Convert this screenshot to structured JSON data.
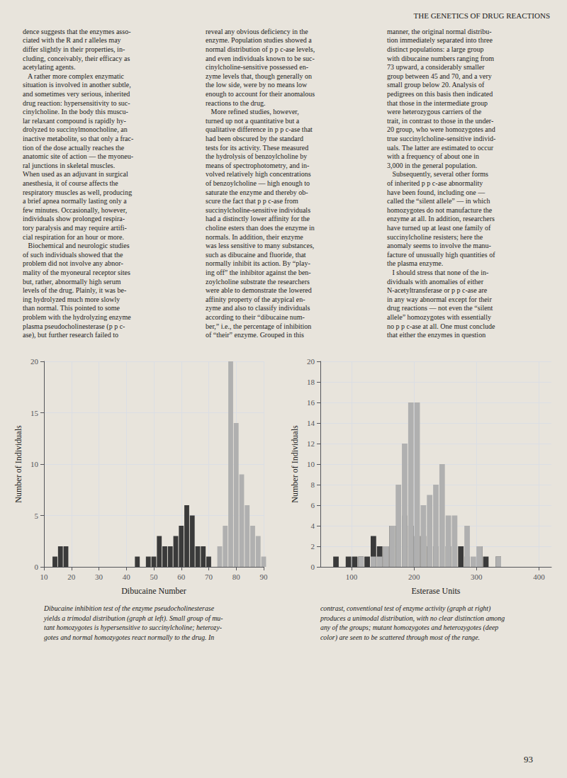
{
  "title": "THE GENETICS OF DRUG REACTIONS",
  "page_number": "93",
  "annotations": [
    "dence suggests that the enzymes asso-\nciated with the R and r alleles may\ndiffer slightly in their properties, in-\ncluding, conceivably, their efficacy as\nacetylating agents.\n   A rather more complex enzymatic\nsituation is involved in another subtle,\nand sometimes very serious, inherited\ndrug reaction: hypersensitivity to suc-\ncinylcholine. In the body this muscu-\nlar relaxant compound is rapidly hy-\ndrolyzed to succinylmonocholine, an\ninactive metabolite, so that only a frac-\ntion of the dose actually reaches the\nanatomic site of action — the myoneu-\nral junctions in skeletal muscles.\nWhen used as an adjuvant in surgical\nanesthesia, it of course affects the\nrespiratory muscles as well, producing\na brief apnea normally lasting only a\nfew minutes. Occasionally, however,\nindividuals show prolonged respira-\ntory paralysis and may require artifi-\ncial respiration for an hour or more.\n   Biochemical and neurologic studies\nof such individuals showed that the\nproblem did not involve any abnor-\nmality of the myoneural receptor sites\nbut, rather, abnormally high serum\nlevels of the drug. Plainly, it was be-\ning hydrolyzed much more slowly\nthan normal. This pointed to some\nproblem with the hydrolyzing enzyme\nplasma pseudocholinesterase (p p c-\nase), but further research failed to",
    "reveal any obvious deficiency in the\nenzyme. Population studies showed a\nnormal distribution of p p c-ase levels,\nand even individuals known to be suc-\ncinylcholine-sensitive possessed en-\nzyme levels that, though generally on\nthe low side, were by no means low\nenough to account for their anomalous\nreactions to the drug.\n   More refined studies, however,\nturned up not a quantitative but a\nqualitative difference in p p c-ase that\nhad been obscured by the standard\ntests for its activity. These measured\nthe hydrolysis of benzoylcholine by\nmeans of spectrophotometry, and in-\nvolved relatively high concentrations\nof benzoylcholine — high enough to\nsaturate the enzyme and thereby ob-\nscure the fact that p p c-ase from\nsuccinylcholine-sensitive individuals\nhad a distinctly lower affinity for the\ncholine esters than does the enzyme in\nnormals. In addition, their enzyme\nwas less sensitive to many substances,\nsuch as dibucaine and fluoride, that\nnormally inhibit its action. By “play-\ning off” the inhibitor against the ben-\nzoylcholine substrate the researchers\nwere able to demonstrate the lowered\naffinity property of the atypical en-\nzyme and also to classify individuals\naccording to their “dibucaine num-\nber,” i.e., the percentage of inhibition\nof “their” enzyme. Grouped in this",
    "manner, the original normal distribu-\ntion immediately separated into three\ndistinct populations: a large group\nwith dibucaine numbers ranging from\n73 upward, a considerably smaller\ngroup between 45 and 70, and a very\nsmall group below 20. Analysis of\npedigrees on this basis then indicated\nthat those in the intermediate group\nwere heterozygous carriers of the\ntrait, in contrast to those in the under-\n20 group, who were homozygotes and\ntrue succinylcholine-sensitive individ-\nuals. The latter are estimated to occur\nwith a frequency of about one in\n3,000 in the general population.\n   Subsequently, several other forms\nof inherited p p c-ase abnormality\nhave been found, including one —\ncalled the “silent allele” — in which\nhomozygotes do not manufacture the\nenzyme at all. In addition, researchers\nhave turned up at least one family of\nsuccinylcholine resisters; here the\nanomaly seems to involve the manu-\nfacture of unusually high quantities of\nthe plasma enzyme.\n   I should stress that none of the in-\ndividuals with anomalies of either\nN-acetyltransferase or p p c-ase are\nin any way abnormal except for their\ndrug reactions — not even the “silent\nallele” homozygotes with essentially\nno p p c-ase at all. One must conclude\nthat either the enzymes in question"
  ],
  "chart_data": [
    {
      "type": "bar",
      "xlabel": "Dibucaine Number",
      "ylabel": "Number of Individuals",
      "caption": "Dibucaine inhibition test of the enzyme pseudocholinesterase\nyields a trimodal distribution (graph at left). Small group of mu-\ntant homozygotes is hypersensitive to succinylcholine; heterozy-\ngotes and normal homozygotes react normally to the drug. In",
      "x": [
        14,
        16,
        18,
        44,
        48,
        50,
        52,
        54,
        56,
        58,
        60,
        62,
        64,
        66,
        68,
        70,
        74,
        76,
        78,
        80,
        82,
        84,
        86,
        88,
        90
      ],
      "series": [
        {
          "color": "#3a3a3a",
          "values": [
            1,
            2,
            2,
            1,
            1,
            1,
            3,
            2,
            2,
            3,
            4,
            6,
            5,
            2,
            2,
            1,
            0,
            0,
            0,
            0,
            0,
            0,
            0,
            0,
            0
          ]
        },
        {
          "color": "#b0b0b0",
          "values": [
            0,
            0,
            0,
            0,
            0,
            0,
            0,
            0,
            0,
            0,
            0,
            0,
            0,
            0,
            0,
            0,
            2,
            4,
            20,
            14,
            9,
            6,
            4,
            3,
            1
          ]
        }
      ],
      "xlim": [
        10,
        90
      ],
      "ylim": [
        0,
        20
      ],
      "xticks": [
        10,
        20,
        30,
        40,
        50,
        60,
        70,
        80,
        90
      ],
      "yticks": [
        0,
        5,
        10,
        15,
        20
      ],
      "grid": true
    },
    {
      "type": "bar",
      "xlabel": "Esterase Units",
      "ylabel": "Number of Individuals",
      "caption": "contrast, conventional test of enzyme activity (graph at right)\nproduces a unimodal distribution, with no clear distinction among\nany of the groups; mutant homozygotes and heterozygotes (deep\ncolor) are seen to be scattered through most of the range.",
      "x": [
        75,
        95,
        105,
        115,
        125,
        135,
        145,
        155,
        165,
        175,
        185,
        195,
        205,
        215,
        225,
        235,
        245,
        255,
        265,
        275,
        285,
        295,
        305,
        315,
        335
      ],
      "series": [
        {
          "color": "#3a3a3a",
          "values": [
            1,
            1,
            1,
            1,
            1,
            3,
            2,
            2,
            4,
            4,
            5,
            4,
            3,
            3,
            2,
            2,
            0,
            2,
            0,
            2,
            1,
            0,
            2,
            1,
            1
          ]
        },
        {
          "color": "#b0b0b0",
          "values": [
            0,
            0,
            0,
            1,
            0,
            1,
            1,
            2,
            4,
            8,
            12,
            16,
            16,
            6,
            7,
            8,
            10,
            5,
            5,
            0,
            4,
            1,
            2,
            0,
            1
          ]
        }
      ],
      "stacked": true,
      "xlim": [
        50,
        420
      ],
      "ylim": [
        0,
        20
      ],
      "xticks": [
        100,
        200,
        300,
        400
      ],
      "yticks": [
        0,
        2,
        4,
        6,
        8,
        10,
        12,
        14,
        16,
        18,
        20
      ],
      "grid": true
    }
  ]
}
